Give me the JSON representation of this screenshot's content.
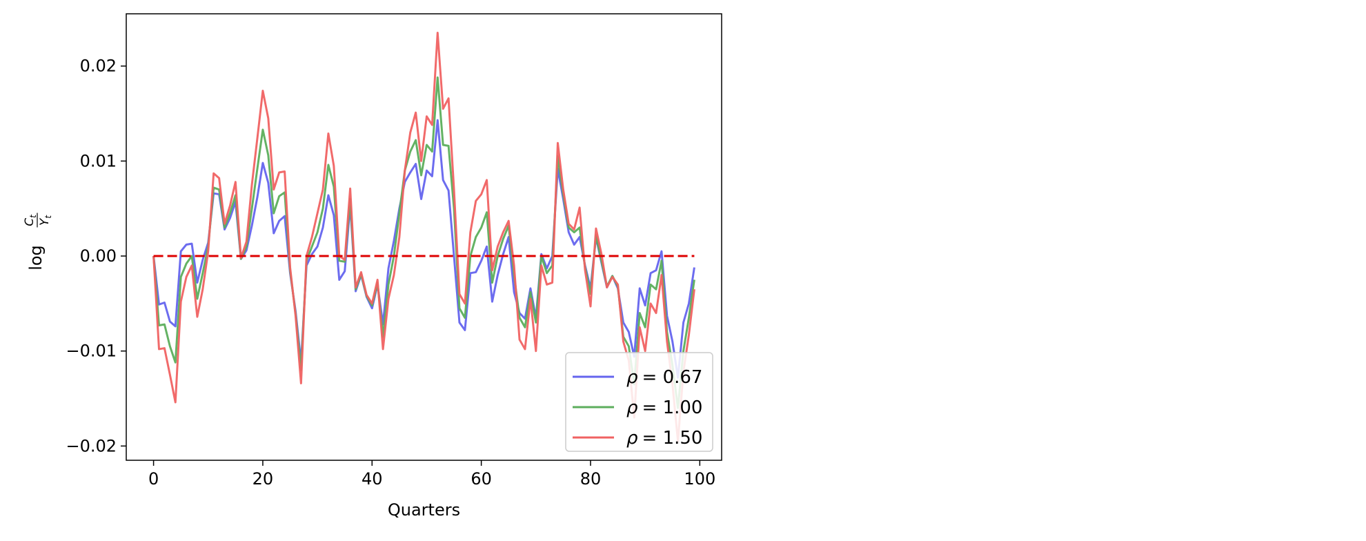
{
  "chart_data": {
    "type": "line",
    "xlabel": "Quarters",
    "ylabel": "log Ct/Yt",
    "ylabel_parts": {
      "prefix": "log",
      "numerator": "C",
      "num_sub": "t",
      "denominator": "Y",
      "den_sub": "t"
    },
    "xlim": [
      -5,
      104
    ],
    "ylim": [
      -0.0215,
      0.0255
    ],
    "xticks": [
      0,
      20,
      40,
      60,
      80,
      100
    ],
    "xtick_labels": [
      "0",
      "20",
      "40",
      "60",
      "80",
      "100"
    ],
    "yticks": [
      -0.02,
      -0.01,
      0.0,
      0.01,
      0.02
    ],
    "ytick_labels": [
      "−0.02",
      "−0.01",
      "0.00",
      "0.01",
      "0.02"
    ],
    "grid": false,
    "legend_position": "lower-right",
    "reference_line": {
      "y": 0,
      "x_range": [
        0,
        99
      ],
      "color": "#dd0000",
      "style": "dashed"
    },
    "series": [
      {
        "name": "ρ = 0.67",
        "label_symbol": "ρ",
        "label_value": "= 0.67",
        "color": "#6464ee",
        "values": [
          0.0,
          -0.0051,
          -0.0049,
          -0.0069,
          -0.0074,
          0.0005,
          0.0012,
          0.0013,
          -0.0028,
          -0.0004,
          0.0014,
          0.0066,
          0.0065,
          0.0028,
          0.004,
          0.0057,
          -0.0003,
          0.0006,
          0.0032,
          0.0062,
          0.0098,
          0.0077,
          0.0024,
          0.0037,
          0.0042,
          -0.0018,
          -0.0058,
          -0.0112,
          -0.001,
          0.0002,
          0.001,
          0.003,
          0.0064,
          0.0043,
          -0.0025,
          -0.0016,
          0.0054,
          -0.0037,
          -0.002,
          -0.0043,
          -0.0055,
          -0.003,
          -0.0072,
          -0.0013,
          0.0016,
          0.005,
          0.0078,
          0.0088,
          0.0097,
          0.006,
          0.009,
          0.0084,
          0.0143,
          0.008,
          0.0069,
          0.0,
          -0.007,
          -0.0078,
          -0.0018,
          -0.0017,
          -0.0005,
          0.001,
          -0.0048,
          -0.002,
          0.0002,
          0.002,
          -0.0038,
          -0.006,
          -0.0066,
          -0.0034,
          -0.0065,
          0.0002,
          -0.0013,
          0.0,
          0.0092,
          0.006,
          0.0025,
          0.0012,
          0.002,
          -0.001,
          -0.0034,
          0.002,
          -0.0007,
          -0.0033,
          -0.0021,
          -0.0034,
          -0.007,
          -0.008,
          -0.0106,
          -0.0034,
          -0.0052,
          -0.0018,
          -0.0015,
          0.0005,
          -0.0063,
          -0.009,
          -0.0128,
          -0.007,
          -0.005,
          -0.0012
        ]
      },
      {
        "name": "ρ = 1.00",
        "label_symbol": "ρ",
        "label_value": "= 1.00",
        "color": "#5cae5c",
        "values": [
          0.0,
          -0.0073,
          -0.0072,
          -0.0095,
          -0.0112,
          -0.0022,
          -0.0008,
          0.0,
          -0.0045,
          -0.0018,
          0.001,
          0.0072,
          0.007,
          0.003,
          0.0045,
          0.0064,
          -0.0003,
          0.001,
          0.005,
          0.0092,
          0.0133,
          0.0106,
          0.0045,
          0.0063,
          0.0067,
          -0.0015,
          -0.0061,
          -0.012,
          -0.0005,
          0.001,
          0.0025,
          0.005,
          0.0096,
          0.0073,
          -0.0005,
          -0.0006,
          0.006,
          -0.0035,
          -0.0019,
          -0.0042,
          -0.0052,
          -0.0028,
          -0.0085,
          -0.003,
          0.0,
          0.0045,
          0.009,
          0.011,
          0.0122,
          0.0085,
          0.0117,
          0.011,
          0.0188,
          0.0117,
          0.0116,
          0.005,
          -0.0055,
          -0.0065,
          0.0,
          0.002,
          0.003,
          0.0046,
          -0.0028,
          0.0,
          0.0018,
          0.0032,
          -0.002,
          -0.0065,
          -0.0075,
          -0.0038,
          -0.007,
          0.0,
          -0.0018,
          -0.001,
          0.0105,
          0.0065,
          0.003,
          0.0025,
          0.003,
          -0.0012,
          -0.004,
          0.0022,
          -0.0005,
          -0.0032,
          -0.0021,
          -0.0032,
          -0.0085,
          -0.0095,
          -0.0135,
          -0.006,
          -0.0075,
          -0.003,
          -0.0035,
          -0.0005,
          -0.008,
          -0.0115,
          -0.016,
          -0.01,
          -0.0065,
          -0.0025
        ]
      },
      {
        "name": "ρ = 1.50",
        "label_symbol": "ρ",
        "label_value": "= 1.50",
        "color": "#f06262",
        "values": [
          0.0,
          -0.0098,
          -0.0097,
          -0.0125,
          -0.0154,
          -0.0048,
          -0.0022,
          -0.001,
          -0.0064,
          -0.0035,
          0.0005,
          0.0087,
          0.0082,
          0.0034,
          0.0053,
          0.0078,
          -0.0002,
          0.0015,
          0.0075,
          0.0124,
          0.0174,
          0.0145,
          0.007,
          0.0088,
          0.0089,
          -0.0012,
          -0.0063,
          -0.0134,
          0.0,
          0.002,
          0.0045,
          0.007,
          0.0129,
          0.0095,
          0.0,
          -0.0004,
          0.0071,
          -0.0033,
          -0.0017,
          -0.0041,
          -0.005,
          -0.0025,
          -0.0098,
          -0.0045,
          -0.002,
          0.002,
          0.009,
          0.013,
          0.0151,
          0.01,
          0.0147,
          0.0138,
          0.0235,
          0.0155,
          0.0166,
          0.007,
          -0.004,
          -0.005,
          0.0025,
          0.0058,
          0.0065,
          0.008,
          -0.0015,
          0.001,
          0.0025,
          0.0037,
          -0.001,
          -0.0088,
          -0.0098,
          -0.0045,
          -0.01,
          -0.001,
          -0.003,
          -0.0028,
          0.0119,
          0.007,
          0.0034,
          0.0028,
          0.0051,
          -0.0015,
          -0.0053,
          0.0029,
          0.0002,
          -0.0033,
          -0.0022,
          -0.003,
          -0.009,
          -0.011,
          -0.017,
          -0.0075,
          -0.01,
          -0.005,
          -0.006,
          -0.002,
          -0.009,
          -0.0135,
          -0.0195,
          -0.0122,
          -0.0083,
          -0.0035
        ]
      }
    ],
    "overlap_color": "#a53232"
  }
}
